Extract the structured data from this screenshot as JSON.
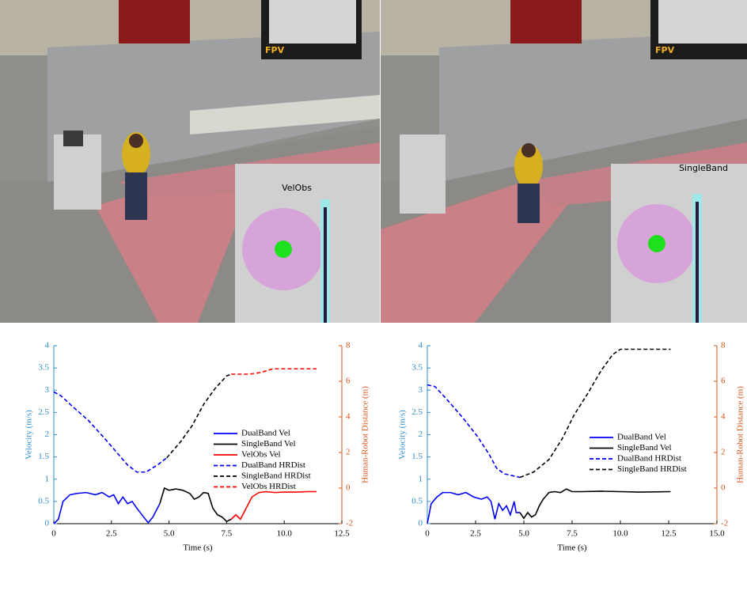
{
  "scenes": [
    {
      "fpv_label": "FPV",
      "panel_title": "VelObs"
    },
    {
      "fpv_label": "FPV",
      "panel_title": "SingleBand"
    }
  ],
  "chart_data": [
    {
      "type": "line",
      "xlabel": "Time (s)",
      "ylabel": "Velocity (m/s)",
      "y2label": "Human-Robot Distance (m)",
      "ylabel_color": "#2f8fd0",
      "y2label_color": "#d9541a",
      "xlim": [
        0,
        12.5
      ],
      "xticks": [
        0,
        2.5,
        {
          "value": 5,
          "label": "5.0"
        },
        {
          "value": 7.5,
          "label": "7.5"
        },
        {
          "value": 10,
          "label": "10.0"
        },
        {
          "value": 12.5,
          "label": "12.5"
        }
      ],
      "ylim": [
        0,
        4
      ],
      "yticks": [
        0,
        0.5,
        1,
        1.5,
        2,
        2.5,
        3,
        3.5,
        4
      ],
      "y2lim": [
        -2,
        8
      ],
      "y2ticks": [
        -2,
        0,
        2,
        4,
        6,
        8
      ],
      "series": [
        {
          "name": "DualBand Vel",
          "color": "#0000ff",
          "line_style": "solid",
          "axis": "y",
          "x": [
            0,
            0.2,
            0.4,
            0.7,
            1,
            1.4,
            1.8,
            2.1,
            2.4,
            2.6,
            2.8,
            3,
            3.2,
            3.4,
            3.6,
            3.9,
            4.1,
            4.3,
            4.6
          ],
          "values": [
            0,
            0.1,
            0.5,
            0.65,
            0.68,
            0.7,
            0.65,
            0.7,
            0.6,
            0.65,
            0.45,
            0.6,
            0.45,
            0.5,
            0.35,
            0.15,
            0.02,
            0.15,
            0.45
          ]
        },
        {
          "name": "SingleBand Vel",
          "color": "#000000",
          "line_style": "solid",
          "axis": "y",
          "x": [
            4.6,
            4.8,
            5,
            5.3,
            5.6,
            5.9,
            6.1,
            6.3,
            6.5,
            6.7,
            6.9,
            7.1,
            7.3,
            7.5,
            7.7
          ],
          "values": [
            0.45,
            0.8,
            0.75,
            0.78,
            0.75,
            0.68,
            0.55,
            0.6,
            0.7,
            0.68,
            0.35,
            0.2,
            0.15,
            0.05,
            0.1
          ]
        },
        {
          "name": "VelObs Vel",
          "color": "#ff0000",
          "line_style": "solid",
          "axis": "y",
          "x": [
            7.7,
            7.9,
            8.1,
            8.3,
            8.6,
            8.9,
            9.2,
            9.6,
            10,
            10.5,
            11,
            11.4
          ],
          "values": [
            0.1,
            0.2,
            0.1,
            0.3,
            0.6,
            0.7,
            0.72,
            0.7,
            0.71,
            0.71,
            0.72,
            0.72
          ]
        },
        {
          "name": "DualBand HRDist",
          "color": "#0000ff",
          "line_style": "dashed",
          "axis": "y2",
          "x": [
            0,
            0.3,
            0.8,
            1.5,
            2.2,
            2.8,
            3.2,
            3.6,
            4,
            4.5,
            4.9
          ],
          "values": [
            5.4,
            5.2,
            4.6,
            3.8,
            2.8,
            1.9,
            1.3,
            0.9,
            0.9,
            1.3,
            1.7
          ]
        },
        {
          "name": "SingleBand HRDist",
          "color": "#000000",
          "line_style": "dashed",
          "axis": "y2",
          "x": [
            4.9,
            5.5,
            6,
            6.5,
            7,
            7.5,
            7.7
          ],
          "values": [
            1.7,
            2.6,
            3.5,
            4.7,
            5.6,
            6.3,
            6.4
          ]
        },
        {
          "name": "VelObs HRDist",
          "color": "#ff0000",
          "line_style": "dashed",
          "axis": "y2",
          "x": [
            7.7,
            8.5,
            9,
            9.5,
            10,
            11.4
          ],
          "values": [
            6.4,
            6.4,
            6.5,
            6.7,
            6.7,
            6.7
          ]
        }
      ]
    },
    {
      "type": "line",
      "xlabel": "Time (s)",
      "ylabel": "Velocity (m/s)",
      "y2label": "Human-Robot Distance (m)",
      "ylabel_color": "#2f8fd0",
      "y2label_color": "#d9541a",
      "xlim": [
        0,
        15
      ],
      "xticks": [
        0,
        2.5,
        {
          "value": 5,
          "label": "5.0"
        },
        {
          "value": 7.5,
          "label": "7.5"
        },
        {
          "value": 10,
          "label": "10.0"
        },
        {
          "value": 12.5,
          "label": "12.5"
        },
        {
          "value": 15,
          "label": "15.0"
        }
      ],
      "ylim": [
        0,
        4
      ],
      "yticks": [
        0,
        0.5,
        1,
        1.5,
        2,
        2.5,
        3,
        3.5,
        4
      ],
      "y2lim": [
        -2,
        8
      ],
      "y2ticks": [
        -2,
        0,
        2,
        4,
        6,
        8
      ],
      "series": [
        {
          "name": "DualBand Vel",
          "color": "#0000ff",
          "line_style": "solid",
          "axis": "y",
          "x": [
            0,
            0.2,
            0.5,
            0.8,
            1.2,
            1.6,
            2,
            2.4,
            2.8,
            3.1,
            3.3,
            3.5,
            3.7,
            3.9,
            4.1,
            4.3,
            4.5,
            4.6,
            4.8
          ],
          "values": [
            0,
            0.45,
            0.6,
            0.7,
            0.7,
            0.65,
            0.7,
            0.6,
            0.55,
            0.6,
            0.5,
            0.1,
            0.45,
            0.3,
            0.4,
            0.2,
            0.5,
            0.25,
            0.25
          ]
        },
        {
          "name": "SingleBand Vel",
          "color": "#000000",
          "line_style": "solid",
          "axis": "y",
          "x": [
            4.8,
            5,
            5.2,
            5.4,
            5.6,
            5.8,
            6,
            6.3,
            6.6,
            6.9,
            7.2,
            7.5,
            8,
            9,
            10,
            11,
            12.6
          ],
          "values": [
            0.25,
            0.12,
            0.25,
            0.15,
            0.2,
            0.4,
            0.55,
            0.7,
            0.72,
            0.7,
            0.78,
            0.72,
            0.72,
            0.73,
            0.72,
            0.71,
            0.72
          ]
        },
        {
          "name": "DualBand HRDist",
          "color": "#0000ff",
          "line_style": "dashed",
          "axis": "y2",
          "x": [
            0,
            0.4,
            1,
            1.8,
            2.6,
            3.2,
            3.6,
            4,
            4.8
          ],
          "values": [
            5.8,
            5.7,
            5,
            4,
            2.9,
            1.9,
            1.1,
            0.8,
            0.6
          ]
        },
        {
          "name": "SingleBand HRDist",
          "color": "#000000",
          "line_style": "dashed",
          "axis": "y2",
          "x": [
            4.8,
            5.5,
            6.3,
            7,
            7.6,
            8.3,
            9,
            9.6,
            10,
            12.6
          ],
          "values": [
            0.6,
            0.9,
            1.6,
            2.8,
            4.1,
            5.3,
            6.6,
            7.5,
            7.8,
            7.8
          ]
        }
      ]
    }
  ]
}
